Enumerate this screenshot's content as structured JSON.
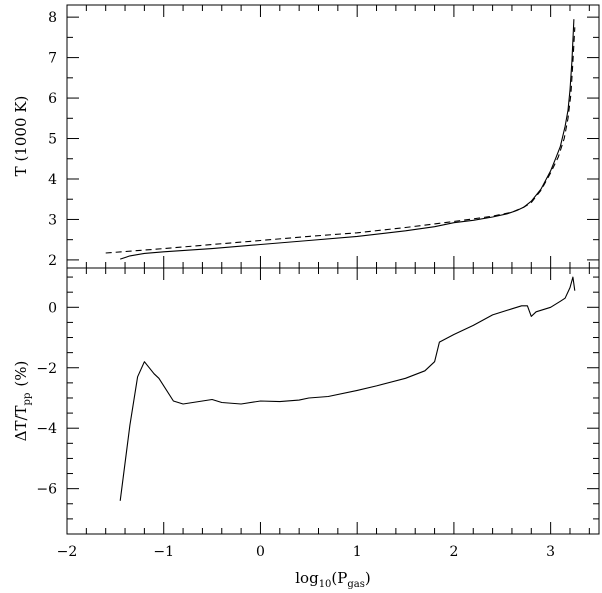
{
  "chart_data": [
    {
      "type": "line",
      "panel": "top",
      "ylabel": "T (1000 K)",
      "xlim": [
        -2,
        3.5
      ],
      "ylim": [
        1.8,
        8.3
      ],
      "x_ticks": [
        -2,
        -1,
        0,
        1,
        2,
        3
      ],
      "y_ticks": [
        2,
        3,
        4,
        5,
        6,
        7,
        8
      ],
      "series": [
        {
          "style": "solid",
          "points": [
            [
              -1.45,
              2.02
            ],
            [
              -1.35,
              2.1
            ],
            [
              -1.2,
              2.16
            ],
            [
              -1.0,
              2.2
            ],
            [
              -0.5,
              2.28
            ],
            [
              0.0,
              2.38
            ],
            [
              0.5,
              2.48
            ],
            [
              1.0,
              2.58
            ],
            [
              1.5,
              2.72
            ],
            [
              1.8,
              2.82
            ],
            [
              2.0,
              2.92
            ],
            [
              2.2,
              2.98
            ],
            [
              2.4,
              3.06
            ],
            [
              2.55,
              3.14
            ],
            [
              2.65,
              3.22
            ],
            [
              2.72,
              3.3
            ],
            [
              2.8,
              3.45
            ],
            [
              2.9,
              3.75
            ],
            [
              3.0,
              4.2
            ],
            [
              3.05,
              4.5
            ],
            [
              3.1,
              4.8
            ],
            [
              3.15,
              5.3
            ],
            [
              3.18,
              5.7
            ],
            [
              3.2,
              6.2
            ],
            [
              3.22,
              6.9
            ],
            [
              3.24,
              7.95
            ]
          ]
        },
        {
          "style": "dashed",
          "points": [
            [
              -1.6,
              2.17
            ],
            [
              -1.0,
              2.28
            ],
            [
              -0.5,
              2.38
            ],
            [
              0.0,
              2.48
            ],
            [
              0.5,
              2.58
            ],
            [
              1.0,
              2.67
            ],
            [
              1.5,
              2.8
            ],
            [
              2.0,
              2.95
            ],
            [
              2.4,
              3.08
            ],
            [
              2.6,
              3.18
            ],
            [
              2.72,
              3.3
            ],
            [
              2.8,
              3.42
            ],
            [
              2.9,
              3.72
            ],
            [
              3.0,
              4.15
            ],
            [
              3.08,
              4.55
            ],
            [
              3.14,
              5.0
            ],
            [
              3.18,
              5.5
            ],
            [
              3.21,
              6.1
            ],
            [
              3.23,
              6.9
            ],
            [
              3.25,
              7.75
            ]
          ]
        }
      ]
    },
    {
      "type": "line",
      "panel": "bottom",
      "xlabel": "log10(Pgas)",
      "ylabel": "ΔT/Tpp (%)",
      "xlim": [
        -2,
        3.5
      ],
      "ylim": [
        -7.5,
        1.3
      ],
      "x_ticks": [
        -2,
        -1,
        0,
        1,
        2,
        3
      ],
      "y_ticks": [
        -6,
        -4,
        -2,
        0
      ],
      "series": [
        {
          "style": "solid",
          "points": [
            [
              -1.45,
              -6.4
            ],
            [
              -1.35,
              -3.9
            ],
            [
              -1.27,
              -2.3
            ],
            [
              -1.2,
              -1.8
            ],
            [
              -1.1,
              -2.2
            ],
            [
              -1.05,
              -2.35
            ],
            [
              -0.9,
              -3.1
            ],
            [
              -0.8,
              -3.2
            ],
            [
              -0.5,
              -3.05
            ],
            [
              -0.4,
              -3.15
            ],
            [
              -0.2,
              -3.2
            ],
            [
              0.0,
              -3.1
            ],
            [
              0.2,
              -3.12
            ],
            [
              0.4,
              -3.07
            ],
            [
              0.5,
              -3.0
            ],
            [
              0.7,
              -2.95
            ],
            [
              1.0,
              -2.75
            ],
            [
              1.2,
              -2.6
            ],
            [
              1.5,
              -2.35
            ],
            [
              1.7,
              -2.1
            ],
            [
              1.8,
              -1.8
            ],
            [
              1.85,
              -1.15
            ],
            [
              2.0,
              -0.9
            ],
            [
              2.2,
              -0.6
            ],
            [
              2.4,
              -0.25
            ],
            [
              2.6,
              -0.05
            ],
            [
              2.7,
              0.05
            ],
            [
              2.76,
              0.05
            ],
            [
              2.8,
              -0.3
            ],
            [
              2.85,
              -0.15
            ],
            [
              3.0,
              0.0
            ],
            [
              3.1,
              0.2
            ],
            [
              3.15,
              0.3
            ],
            [
              3.2,
              0.65
            ],
            [
              3.23,
              1.0
            ],
            [
              3.25,
              0.55
            ]
          ]
        }
      ]
    }
  ],
  "labels": {
    "top_ylabel": "T (1000 K)",
    "bottom_ylabel_main": "ΔT/T",
    "bottom_ylabel_sub": "pp",
    "bottom_ylabel_unit": "(%)",
    "xlabel_main": "log",
    "xlabel_sub": "10",
    "xlabel_paren_open": "(P",
    "xlabel_sub2": "gas",
    "xlabel_paren_close": ")"
  }
}
